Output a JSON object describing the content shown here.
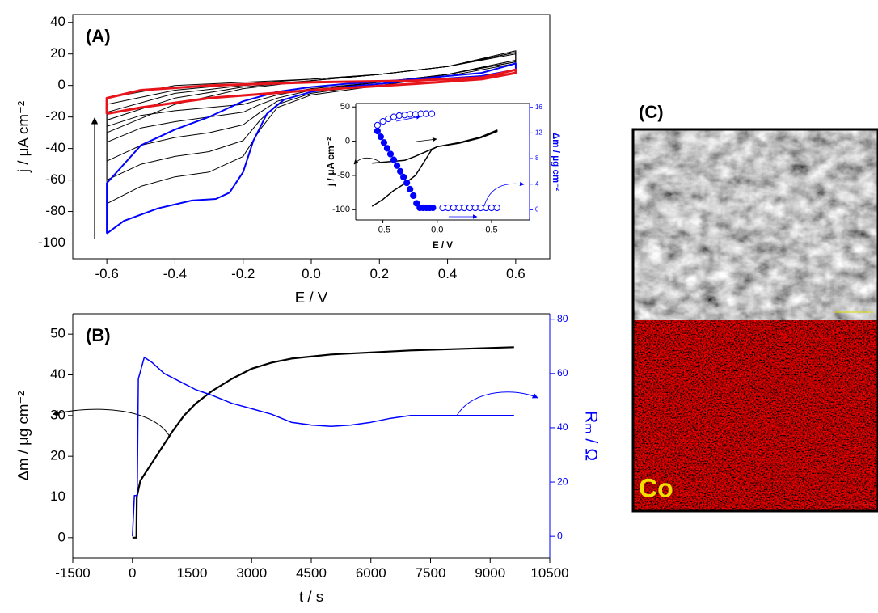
{
  "chart_data": [
    {
      "type": "line",
      "panel_label": "(A)",
      "x_label": "E / V",
      "y_label": "j / μA cm⁻²",
      "xlim": [
        -0.7,
        0.7
      ],
      "ylim": [
        -110,
        45
      ],
      "xticks": [
        -0.6,
        -0.4,
        -0.2,
        {
          "value": 0,
          "label": "0.0"
        },
        0.2,
        0.4,
        0.6
      ],
      "yticks": [
        -100,
        -80,
        -60,
        -40,
        -20,
        0,
        20,
        40
      ],
      "series": [
        {
          "color": "#000000",
          "width": 1,
          "x": [
            -0.6,
            -0.5,
            -0.4,
            -0.3,
            -0.2,
            -0.15,
            -0.1,
            0,
            0.2,
            0.4,
            0.6,
            0.6,
            0.4,
            0.2,
            0,
            -0.2,
            -0.4,
            -0.6,
            -0.6
          ],
          "values": [
            -75,
            -64,
            -58,
            -55,
            -45,
            -28,
            -14,
            -6,
            0,
            6,
            14,
            20,
            12,
            7,
            3,
            -2,
            -12,
            -30,
            -75
          ]
        },
        {
          "color": "#000000",
          "width": 1,
          "x": [
            -0.6,
            -0.5,
            -0.4,
            -0.3,
            -0.2,
            -0.15,
            -0.1,
            0,
            0.2,
            0.4,
            0.6,
            0.6,
            0.4,
            0.2,
            0,
            -0.2,
            -0.4,
            -0.6,
            -0.6
          ],
          "values": [
            -60,
            -50,
            -45,
            -42,
            -35,
            -22,
            -12,
            -5,
            1,
            7,
            15,
            21,
            12,
            7,
            3,
            -1,
            -8,
            -22,
            -60
          ]
        },
        {
          "color": "#000000",
          "width": 1,
          "x": [
            -0.6,
            -0.5,
            -0.4,
            -0.3,
            -0.2,
            -0.15,
            -0.1,
            0,
            0.2,
            0.4,
            0.6,
            0.6,
            0.4,
            0.2,
            0,
            -0.2,
            -0.4,
            -0.6,
            -0.6
          ],
          "values": [
            -48,
            -38,
            -33,
            -30,
            -25,
            -17,
            -10,
            -4,
            1,
            7,
            15,
            22,
            12,
            7,
            3,
            0,
            -5,
            -17,
            -48
          ]
        },
        {
          "color": "#000000",
          "width": 1,
          "x": [
            -0.6,
            -0.5,
            -0.4,
            -0.3,
            -0.2,
            -0.15,
            -0.1,
            0,
            0.2,
            0.4,
            0.6,
            0.6,
            0.4,
            0.2,
            0,
            -0.2,
            -0.4,
            -0.6,
            -0.6
          ],
          "values": [
            -36,
            -27,
            -23,
            -20,
            -17,
            -12,
            -8,
            -3,
            2,
            7,
            16,
            22,
            12,
            7,
            4,
            1,
            -3,
            -12,
            -36
          ]
        },
        {
          "color": "#000000",
          "width": 1,
          "x": [
            -0.6,
            -0.5,
            -0.4,
            -0.3,
            -0.2,
            -0.15,
            -0.1,
            0,
            0.2,
            0.4,
            0.6,
            0.6,
            0.4,
            0.2,
            0,
            -0.2,
            -0.4,
            -0.6,
            -0.6
          ],
          "values": [
            -26,
            -19,
            -16,
            -14,
            -12,
            -9,
            -6,
            -2,
            2,
            7,
            16,
            21,
            12,
            7,
            4,
            2,
            0,
            -8,
            -26
          ]
        },
        {
          "color": "#0000ff",
          "width": 2,
          "x": [
            -0.6,
            -0.55,
            -0.45,
            -0.35,
            -0.28,
            -0.24,
            -0.2,
            -0.17,
            -0.13,
            -0.08,
            0,
            0.1,
            0.3,
            0.5,
            0.6,
            0.6,
            0.5,
            0.3,
            0.1,
            0,
            -0.1,
            -0.2,
            -0.3,
            -0.4,
            -0.5,
            -0.6,
            -0.6
          ],
          "values": [
            -94,
            -86,
            -78,
            -73,
            -72,
            -68,
            -55,
            -35,
            -18,
            -9,
            -4,
            -1,
            3,
            6,
            10,
            14,
            8,
            4,
            1,
            -1,
            -4,
            -10,
            -20,
            -28,
            -38,
            -62,
            -94
          ]
        },
        {
          "color": "#e8141c",
          "width": 3,
          "x": [
            -0.6,
            -0.5,
            -0.3,
            0,
            0.3,
            0.5,
            0.6,
            0.6,
            0.5,
            0.3,
            0,
            -0.3,
            -0.5,
            -0.6,
            -0.6
          ],
          "values": [
            -18,
            -14,
            -8,
            -3,
            1,
            4,
            8,
            10,
            5,
            3,
            2,
            0,
            -3,
            -8,
            -18
          ]
        }
      ]
    },
    {
      "type": "line",
      "x_label": "E / V",
      "y_label": "j / μA cm⁻²",
      "y2_label": "Δm / μg cm⁻²",
      "y2_color": "#0000ff",
      "xlim": [
        -0.75,
        0.85
      ],
      "ylim": [
        -115,
        55
      ],
      "y2lim": [
        -1.6,
        16.6
      ],
      "xticks": [
        -0.5,
        {
          "value": 0,
          "label": "0.0"
        },
        0.5
      ],
      "yticks": [
        -100,
        -50,
        0,
        50
      ],
      "y2ticks": [
        0,
        4,
        8,
        12,
        16
      ],
      "series": [
        {
          "color": "#000000",
          "width": 1.5,
          "x": [
            -0.6,
            -0.5,
            -0.4,
            -0.3,
            -0.2,
            -0.12,
            -0.05,
            0,
            0.2,
            0.4,
            0.55,
            0.55,
            0.4,
            0.2,
            0,
            -0.1,
            -0.2,
            -0.3,
            -0.45,
            -0.6
          ],
          "values": [
            -95,
            -85,
            -72,
            -62,
            -50,
            -30,
            -12,
            -8,
            -3,
            5,
            14,
            16,
            6,
            -2,
            -8,
            -15,
            -22,
            -28,
            -30,
            -32
          ]
        },
        {
          "color": "#0000ff",
          "axis": "y2",
          "marker": "filled",
          "x": [
            -0.55,
            -0.52,
            -0.49,
            -0.46,
            -0.43,
            -0.4,
            -0.37,
            -0.34,
            -0.31,
            -0.28,
            -0.25,
            -0.22,
            -0.19,
            -0.16,
            -0.13,
            -0.1,
            -0.07,
            -0.04
          ],
          "values": [
            12.3,
            11.4,
            10.5,
            9.6,
            8.7,
            7.8,
            6.9,
            6.0,
            5.1,
            4.2,
            3.2,
            2.2,
            1.0,
            0.3,
            0.3,
            0.3,
            0.3,
            0.3
          ]
        },
        {
          "color": "#0000ff",
          "axis": "y2",
          "marker": "open",
          "x": [
            -0.55,
            -0.5,
            -0.45,
            -0.4,
            -0.35,
            -0.3,
            -0.25,
            -0.2,
            -0.15,
            -0.1,
            -0.05
          ],
          "values": [
            13.2,
            13.8,
            14.2,
            14.5,
            14.7,
            14.8,
            14.9,
            14.9,
            15.0,
            15.0,
            15.0
          ]
        },
        {
          "color": "#0000ff",
          "axis": "y2",
          "marker": "open",
          "x": [
            0.05,
            0.1,
            0.15,
            0.2,
            0.25,
            0.3,
            0.35,
            0.4,
            0.45,
            0.5,
            0.55
          ],
          "values": [
            0.3,
            0.3,
            0.3,
            0.3,
            0.3,
            0.3,
            0.3,
            0.3,
            0.3,
            0.3,
            0.3
          ]
        }
      ]
    },
    {
      "type": "line",
      "panel_label": "(B)",
      "x_label": "t / s",
      "y_label": "Δm / μg cm⁻²",
      "y2_label": "Rₘ / Ω",
      "y2_color": "#0000ff",
      "xlim": [
        -1500,
        10500
      ],
      "ylim": [
        -5,
        55
      ],
      "y2lim": [
        -8,
        82
      ],
      "xticks": [
        -1500,
        0,
        1500,
        3000,
        4500,
        6000,
        7500,
        9000,
        10500
      ],
      "yticks": [
        0,
        10,
        20,
        30,
        40,
        50
      ],
      "y2ticks": [
        0,
        20,
        40,
        60,
        80
      ],
      "series": [
        {
          "color": "#000000",
          "width": 2.2,
          "x": [
            0,
            100,
            110,
            200,
            400,
            600,
            800,
            1000,
            1300,
            1600,
            2000,
            2500,
            3000,
            3500,
            4000,
            5000,
            6000,
            7000,
            8000,
            9600
          ],
          "values": [
            0,
            0,
            10,
            14,
            17,
            20,
            23,
            26,
            30,
            33,
            36,
            39,
            41.5,
            43,
            44,
            45,
            45.5,
            46,
            46.3,
            46.8
          ]
        },
        {
          "color": "#0000ff",
          "axis": "y2",
          "width": 1.5,
          "x": [
            0,
            50,
            120,
            150,
            300,
            500,
            800,
            1200,
            1600,
            2000,
            2500,
            3000,
            3500,
            4000,
            4500,
            5000,
            5500,
            6000,
            6500,
            7000,
            8000,
            9600
          ],
          "values": [
            0,
            15,
            15,
            58,
            66,
            64,
            60,
            57,
            54,
            52,
            49,
            47,
            45,
            42,
            41,
            40.5,
            41,
            42,
            43.5,
            44.5,
            44.5,
            44.5
          ]
        }
      ]
    }
  ],
  "panel_c": {
    "label": "(C)",
    "element_label": "Co"
  }
}
